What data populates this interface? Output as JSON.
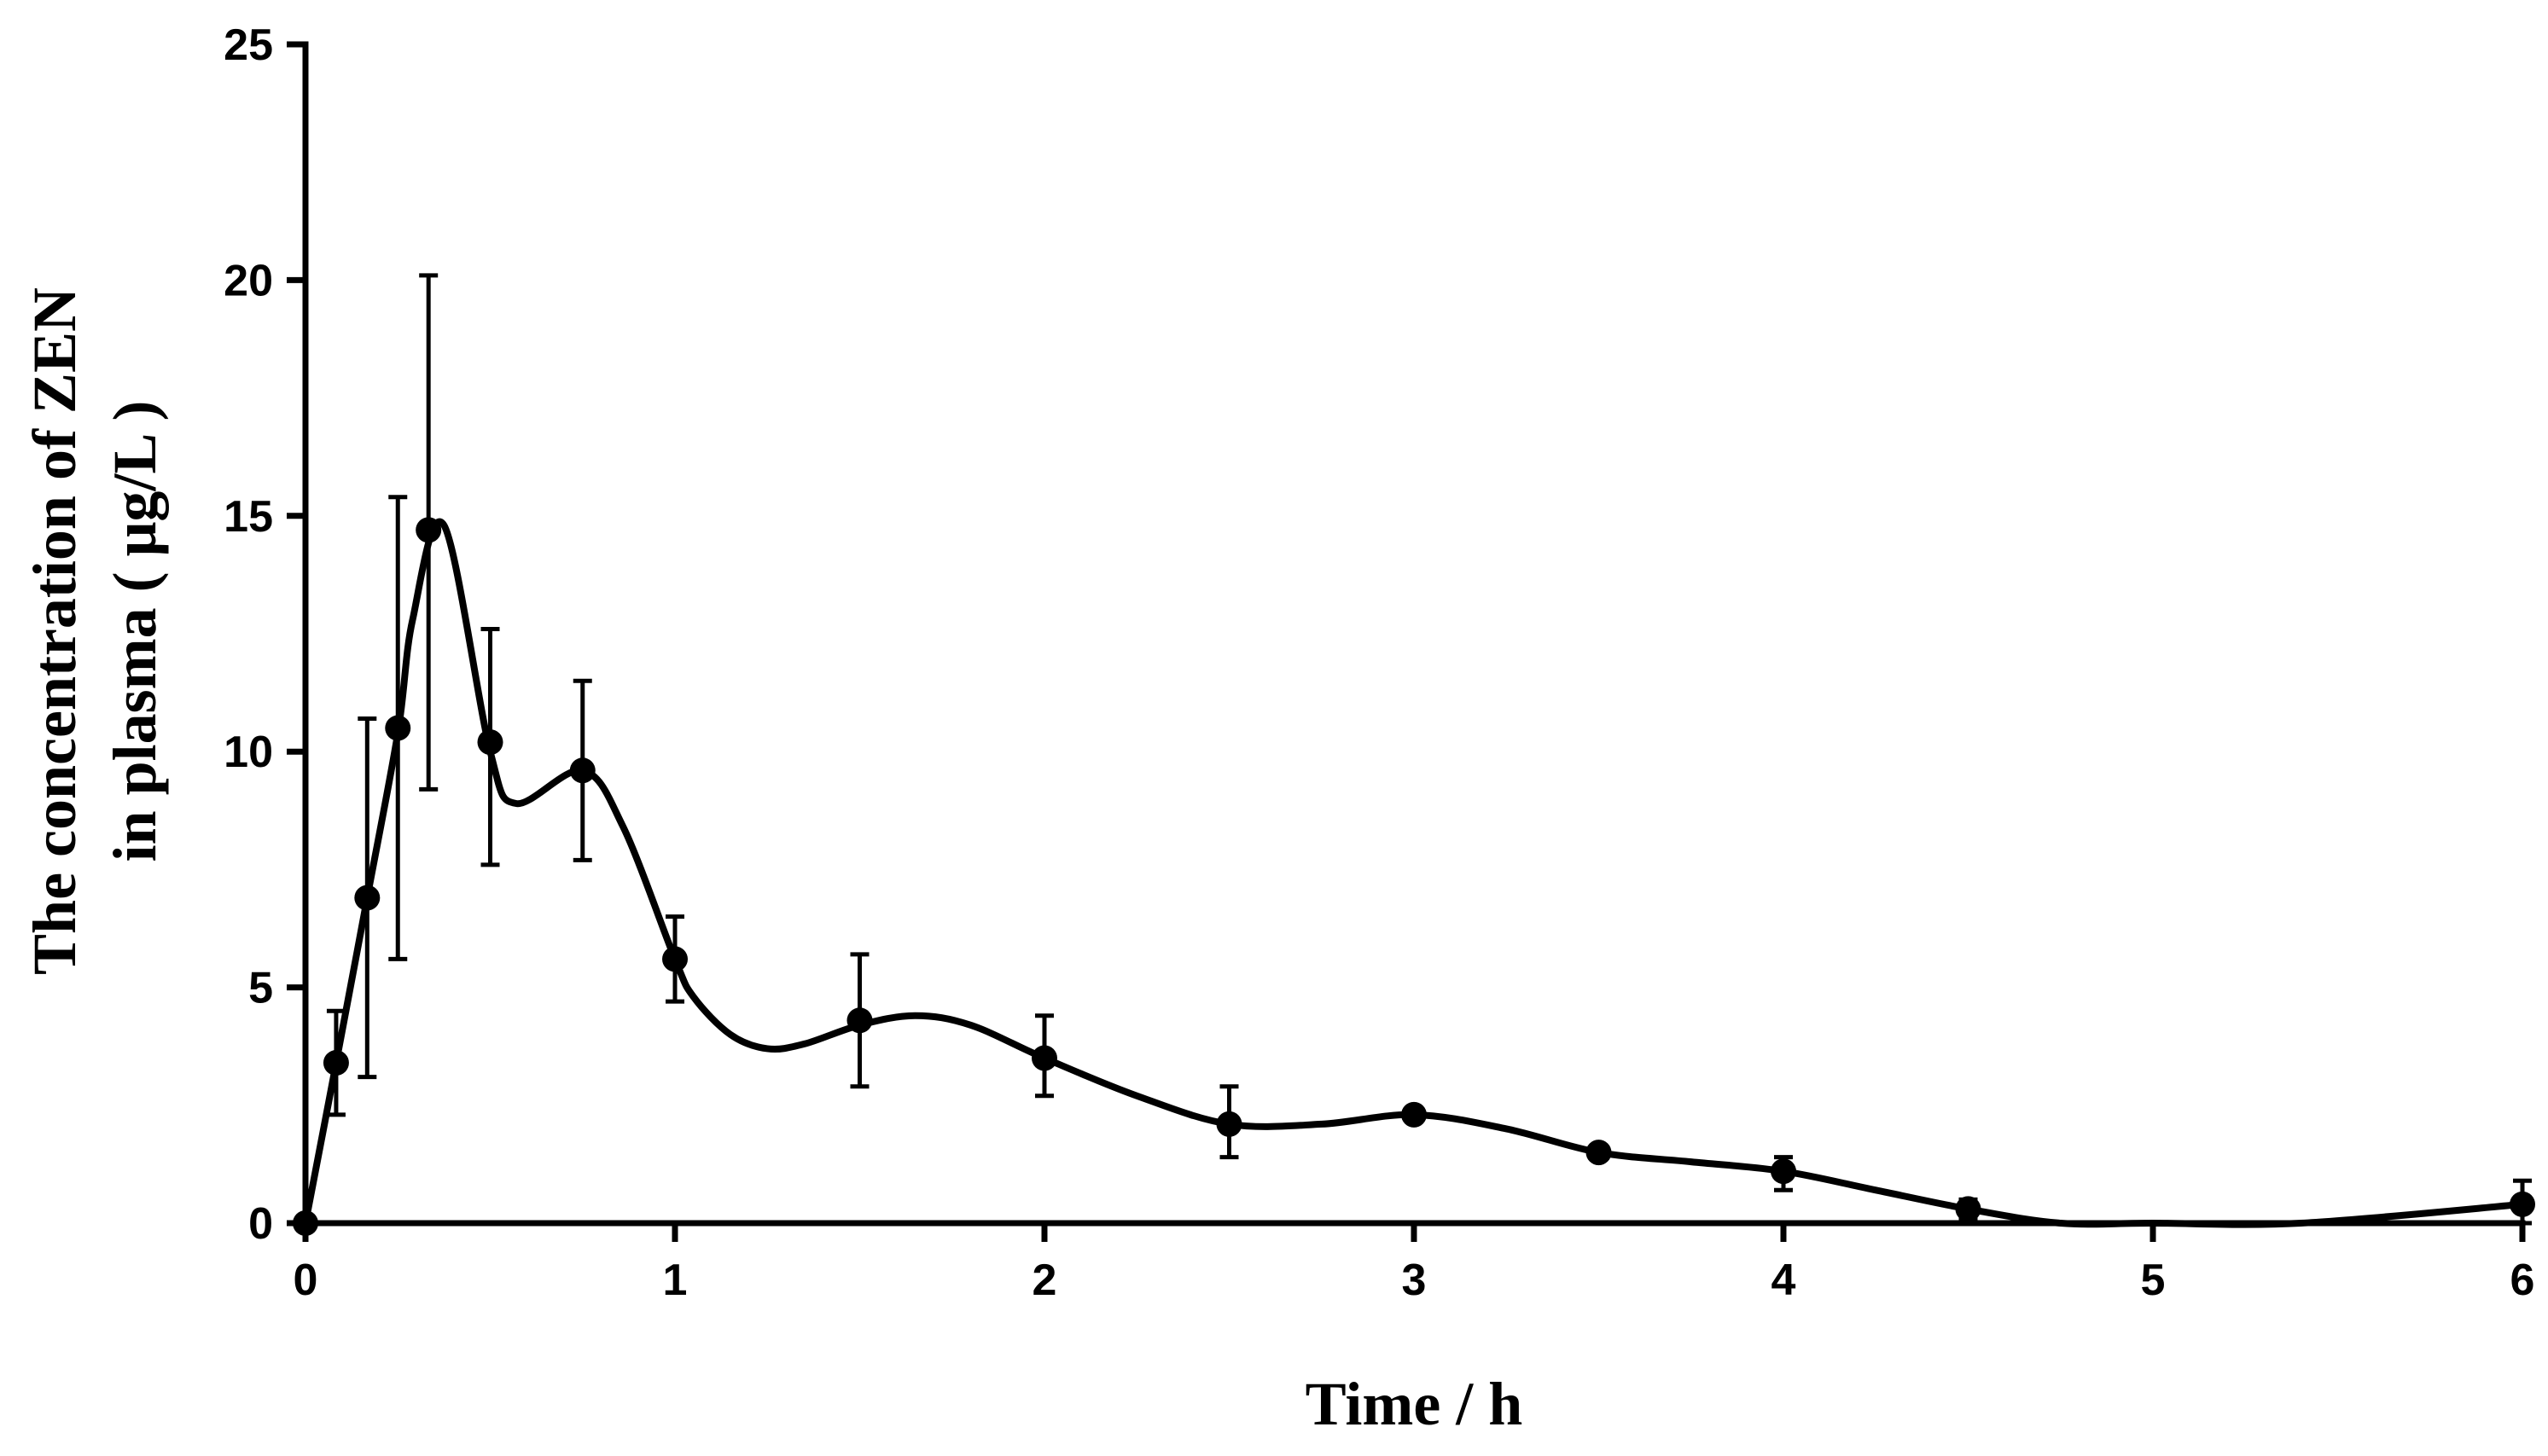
{
  "chart_data": {
    "type": "line",
    "title": "",
    "xlabel": "Time / h",
    "ylabel_lines": [
      "The concentration of ZEN",
      "in plasma ( μg/L )"
    ],
    "xlim": [
      0,
      6
    ],
    "ylim": [
      0,
      25
    ],
    "x_ticks": [
      0,
      1,
      2,
      3,
      4,
      5,
      6
    ],
    "y_ticks": [
      0,
      5,
      10,
      15,
      20,
      25
    ],
    "x_tick_labels": [
      "0",
      "1",
      "2",
      "3",
      "4",
      "5",
      "6"
    ],
    "y_tick_labels": [
      "0",
      "5",
      "10",
      "15",
      "20",
      "25"
    ],
    "grid": false,
    "series": [
      {
        "name": "ZEN",
        "color": "#000000",
        "marker": "circle",
        "points": [
          {
            "x": 0,
            "y": 0,
            "err_low": 0,
            "err_high": 0
          },
          {
            "x": 0.083,
            "y": 3.4,
            "err_low": 2.3,
            "err_high": 4.5
          },
          {
            "x": 0.167,
            "y": 6.9,
            "err_low": 3.1,
            "err_high": 10.7
          },
          {
            "x": 0.25,
            "y": 10.5,
            "err_low": 5.6,
            "err_high": 15.4
          },
          {
            "x": 0.333,
            "y": 14.7,
            "err_low": 9.2,
            "err_high": 20.1
          },
          {
            "x": 0.5,
            "y": 10.2,
            "err_low": 7.6,
            "err_high": 12.6
          },
          {
            "x": 0.75,
            "y": 9.6,
            "err_low": 7.7,
            "err_high": 11.5
          },
          {
            "x": 1,
            "y": 5.6,
            "err_low": 4.7,
            "err_high": 6.5
          },
          {
            "x": 1.5,
            "y": 4.3,
            "err_low": 2.9,
            "err_high": 5.7
          },
          {
            "x": 2,
            "y": 3.5,
            "err_low": 2.7,
            "err_high": 4.4
          },
          {
            "x": 2.5,
            "y": 2.1,
            "err_low": 1.4,
            "err_high": 2.9
          },
          {
            "x": 3,
            "y": 2.3,
            "err_low": 2.2,
            "err_high": 2.4
          },
          {
            "x": 3.5,
            "y": 1.5,
            "err_low": 1.4,
            "err_high": 1.6
          },
          {
            "x": 4,
            "y": 1.1,
            "err_low": 0.7,
            "err_high": 1.4
          },
          {
            "x": 4.5,
            "y": 0.3,
            "err_low": 0.1,
            "err_high": 0.5
          },
          {
            "x": 6,
            "y": 0.4,
            "err_low": 0.0,
            "err_high": 0.9
          }
        ],
        "curve": [
          [
            0,
            0
          ],
          [
            0.083,
            3.4
          ],
          [
            0.167,
            6.9
          ],
          [
            0.25,
            10.4
          ],
          [
            0.29,
            12.8
          ],
          [
            0.375,
            14.8
          ],
          [
            0.5,
            10.0
          ],
          [
            0.57,
            8.9
          ],
          [
            0.75,
            9.6
          ],
          [
            0.86,
            8.4
          ],
          [
            1.0,
            5.6
          ],
          [
            1.05,
            4.8
          ],
          [
            1.15,
            4.0
          ],
          [
            1.25,
            3.7
          ],
          [
            1.35,
            3.8
          ],
          [
            1.5,
            4.2
          ],
          [
            1.65,
            4.4
          ],
          [
            1.8,
            4.2
          ],
          [
            2.0,
            3.5
          ],
          [
            2.25,
            2.7
          ],
          [
            2.5,
            2.1
          ],
          [
            2.75,
            2.1
          ],
          [
            3.0,
            2.3
          ],
          [
            3.25,
            2.0
          ],
          [
            3.5,
            1.5
          ],
          [
            3.75,
            1.3
          ],
          [
            4.0,
            1.1
          ],
          [
            4.25,
            0.7
          ],
          [
            4.5,
            0.3
          ],
          [
            4.75,
            0.0
          ],
          [
            5.0,
            0.0
          ],
          [
            5.4,
            0.0
          ],
          [
            6.0,
            0.4
          ]
        ]
      }
    ]
  }
}
